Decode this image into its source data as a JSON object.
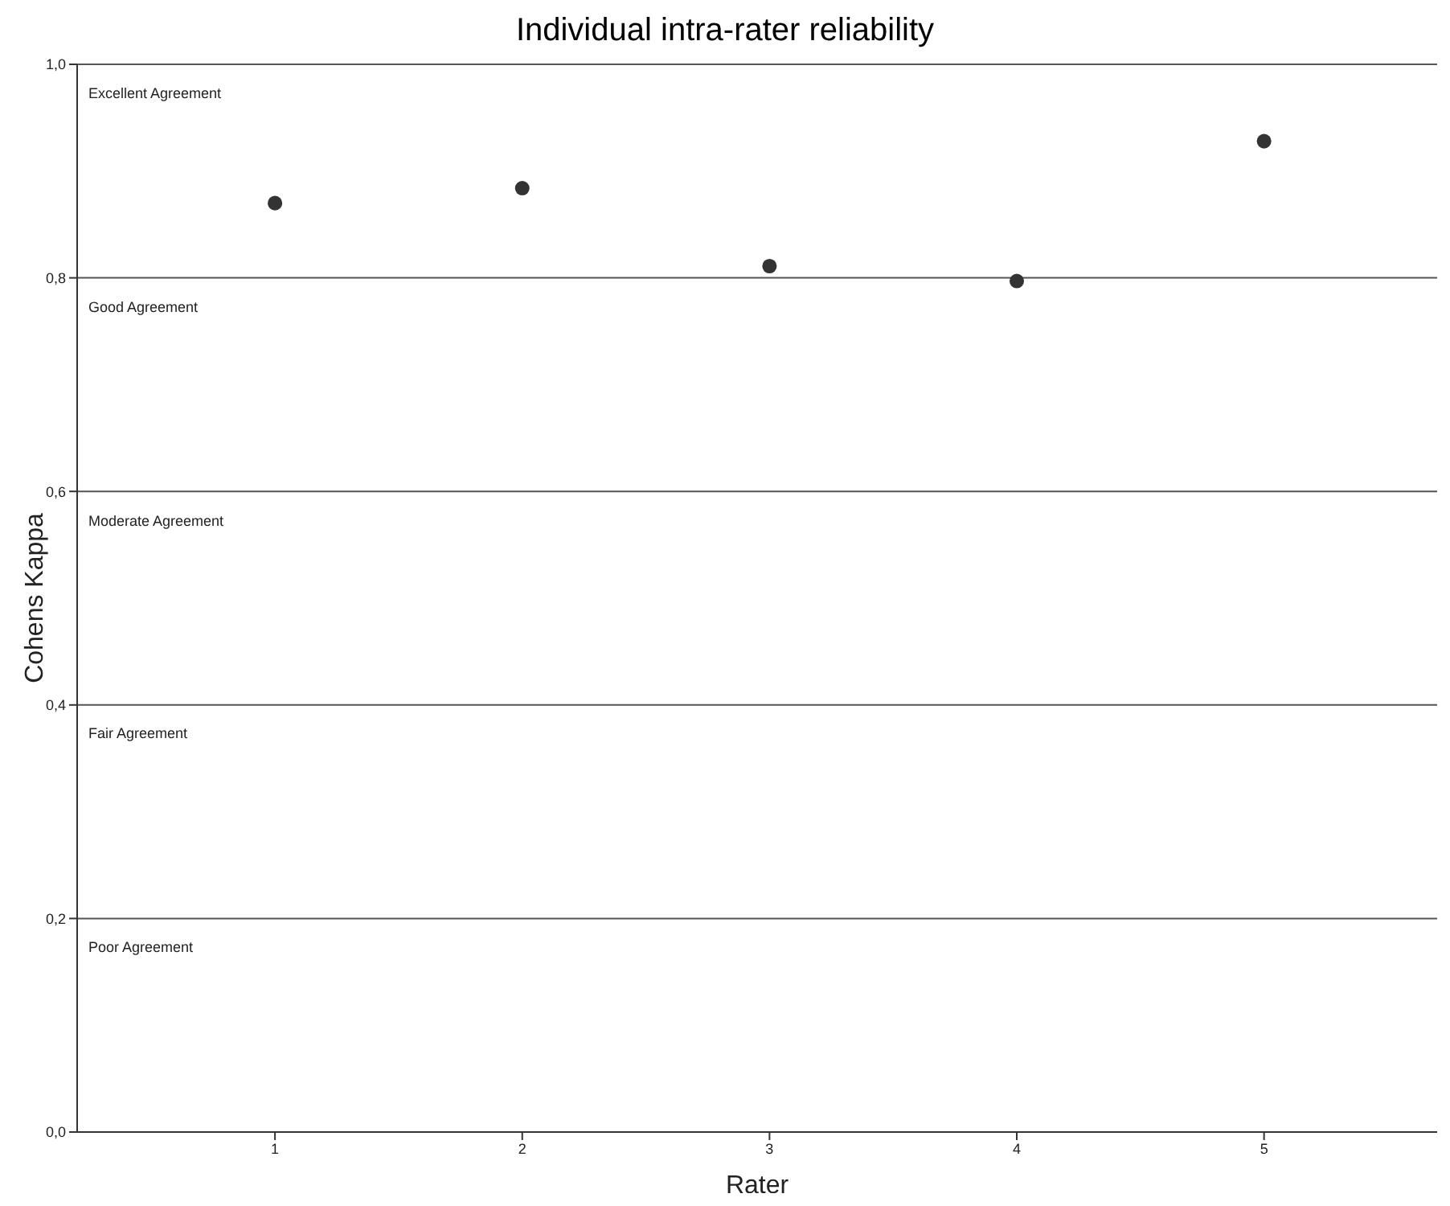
{
  "chart_data": {
    "type": "scatter",
    "title": "Individual intra-rater reliability",
    "xlabel": "Rater",
    "ylabel": "Cohens Kappa",
    "x": [
      1,
      2,
      3,
      4,
      5
    ],
    "values": [
      0.87,
      0.884,
      0.811,
      0.797,
      0.928
    ],
    "color": "#333333",
    "marker": "circle",
    "xlim": [
      0.2,
      5.7
    ],
    "xticks": [
      1,
      2,
      3,
      4,
      5
    ],
    "ylim": [
      0,
      1
    ],
    "yticks": [
      {
        "value": 0,
        "label": "0,0"
      },
      {
        "value": 0.2,
        "label": "0,2"
      },
      {
        "value": 0.4,
        "label": "0,4"
      },
      {
        "value": 0.6,
        "label": "0,6"
      },
      {
        "value": 0.8,
        "label": "0,8"
      },
      {
        "value": 1,
        "label": "1,0"
      }
    ],
    "grid": "y",
    "legend": false,
    "annotations": [
      "Excellent Agreement",
      "Good Agreement",
      "Moderate Agreement",
      "Fair Agreement",
      "Poor Agreement"
    ]
  }
}
